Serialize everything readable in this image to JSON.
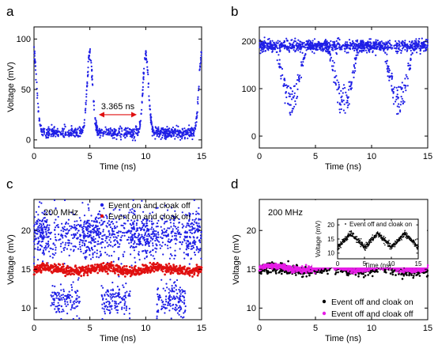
{
  "chart_data": [
    {
      "type": "scatter",
      "panel_label": "a",
      "xlabel": "Time (ns)",
      "ylabel": "Voltage (mV)",
      "xlim": [
        0,
        15
      ],
      "ylim": [
        -8,
        112
      ],
      "x_ticks": [
        0,
        5,
        10,
        15
      ],
      "y_ticks": [
        0,
        50,
        100
      ],
      "series": [
        {
          "color": "#1f1fe6",
          "shape": "periodic-peaks",
          "period_ns": 5,
          "peak_times_ns": [
            0,
            5,
            10,
            15
          ],
          "baseline_mV": 7,
          "peak_mV": 85
        }
      ],
      "annotation": {
        "text": "3.365 ns",
        "from_ns": 5.8,
        "to_ns": 9.2,
        "y_mV": 25,
        "color": "#e01010"
      }
    },
    {
      "type": "scatter",
      "panel_label": "b",
      "xlabel": "Time (ns)",
      "ylabel": "",
      "xlim": [
        0,
        15
      ],
      "ylim": [
        -25,
        230
      ],
      "x_ticks": [
        0,
        5,
        10,
        15
      ],
      "y_ticks": [
        0,
        100,
        200
      ],
      "series": [
        {
          "color": "#1f1fe6",
          "shape": "periodic-dips",
          "baseline_mV": 190,
          "dip_centers_ns": [
            2.8,
            7.5,
            12.4
          ],
          "dip_min_mV": 45
        }
      ]
    },
    {
      "type": "scatter",
      "panel_label": "c",
      "xlabel": "Time (ns)",
      "ylabel": "Voltage (mV)",
      "xlim": [
        0,
        15
      ],
      "ylim": [
        8.5,
        24
      ],
      "x_ticks": [
        0,
        5,
        10,
        15
      ],
      "y_ticks": [
        10,
        15,
        20
      ],
      "annotation": {
        "text": "200 MHz"
      },
      "legend_position": "top-right",
      "series": [
        {
          "name": "Event on and cloak off",
          "color": "#1f1fe6",
          "shape": "noisy-dips",
          "baseline_mV": 19.5,
          "dip_centers_ns": [
            2.8,
            7.3,
            12.3
          ],
          "dip_min_mV": 11
        },
        {
          "name": "Event on and cloak on",
          "color": "#e01010",
          "shape": "flat",
          "level_mV": 15
        }
      ]
    },
    {
      "type": "scatter",
      "panel_label": "d",
      "xlabel": "Time (ns)",
      "ylabel": "Voltage (mV)",
      "xlim": [
        0,
        15
      ],
      "ylim": [
        8.5,
        24
      ],
      "x_ticks": [
        0,
        5,
        10,
        15
      ],
      "y_ticks": [
        10,
        15,
        20
      ],
      "annotation": {
        "text": "200 MHz"
      },
      "legend_position": "bottom-right",
      "series": [
        {
          "name": "Event off and cloak on",
          "color": "#000000",
          "shape": "flat",
          "level_mV": 15
        },
        {
          "name": "Event off and cloak off",
          "color": "#e61ee6",
          "shape": "flat",
          "level_mV": 15.2
        }
      ],
      "inset": {
        "series_name": "Event off and cloak on",
        "ylabel": "Voltage (mV)",
        "xlabel": "Time (ns)",
        "xlim": [
          0,
          15
        ],
        "ylim": [
          8,
          22
        ],
        "x_ticks": [
          0,
          5,
          10,
          15
        ],
        "y_ticks": [
          10,
          15,
          20
        ],
        "color": "#000000",
        "shape": "triangle-wave",
        "peak_times_ns": [
          2.5,
          7.5,
          12.5
        ],
        "trough_times_ns": [
          5,
          10,
          15
        ],
        "peak_mV": 17,
        "trough_mV": 12
      }
    }
  ]
}
